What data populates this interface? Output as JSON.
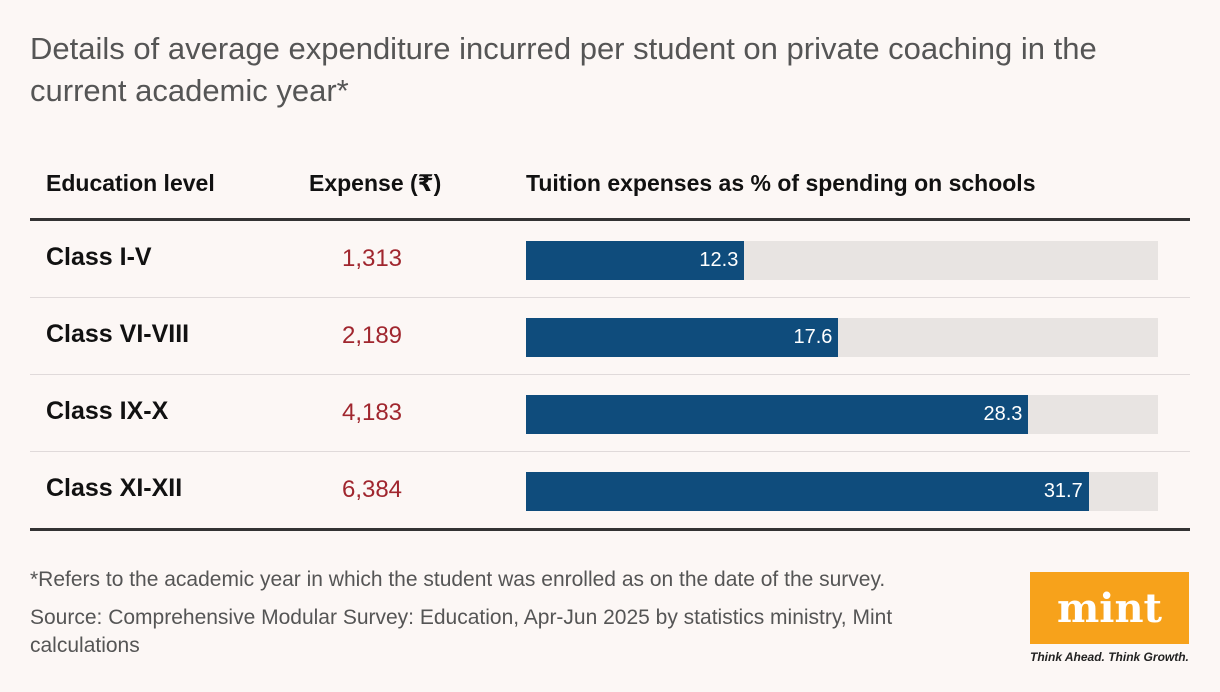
{
  "title": "Details of average expenditure incurred per student on private coaching in the current academic year*",
  "columns": {
    "level": "Education level",
    "expense": "Expense (₹)",
    "pct": "Tuition expenses as % of spending on schools"
  },
  "chart_data": {
    "type": "bar",
    "orientation": "horizontal",
    "categories": [
      "Class I-V",
      "Class VI-VIII",
      "Class IX-X",
      "Class XI-XII"
    ],
    "expense_labels": [
      "1,313",
      "2,189",
      "4,183",
      "6,384"
    ],
    "expense_values": [
      1313,
      2189,
      4183,
      6384
    ],
    "series": [
      {
        "values": [
          12.3,
          17.6,
          28.3,
          31.7
        ]
      }
    ],
    "value_labels": [
      "12.3",
      "17.6",
      "28.3",
      "31.7"
    ],
    "xlim": [
      0,
      35.6
    ],
    "bar_color": "#0f4c7c",
    "track_color": "#e8e4e2",
    "expense_color": "#a0262e"
  },
  "footnote": "*Refers to the academic year in which the student was enrolled as on the date of the survey.",
  "source": "Source: Comprehensive Modular Survey: Education, Apr-Jun 2025 by statistics ministry, Mint calculations",
  "logo": {
    "text": "mint",
    "tagline": "Think Ahead. Think Growth.",
    "color": "#f7a21b"
  }
}
